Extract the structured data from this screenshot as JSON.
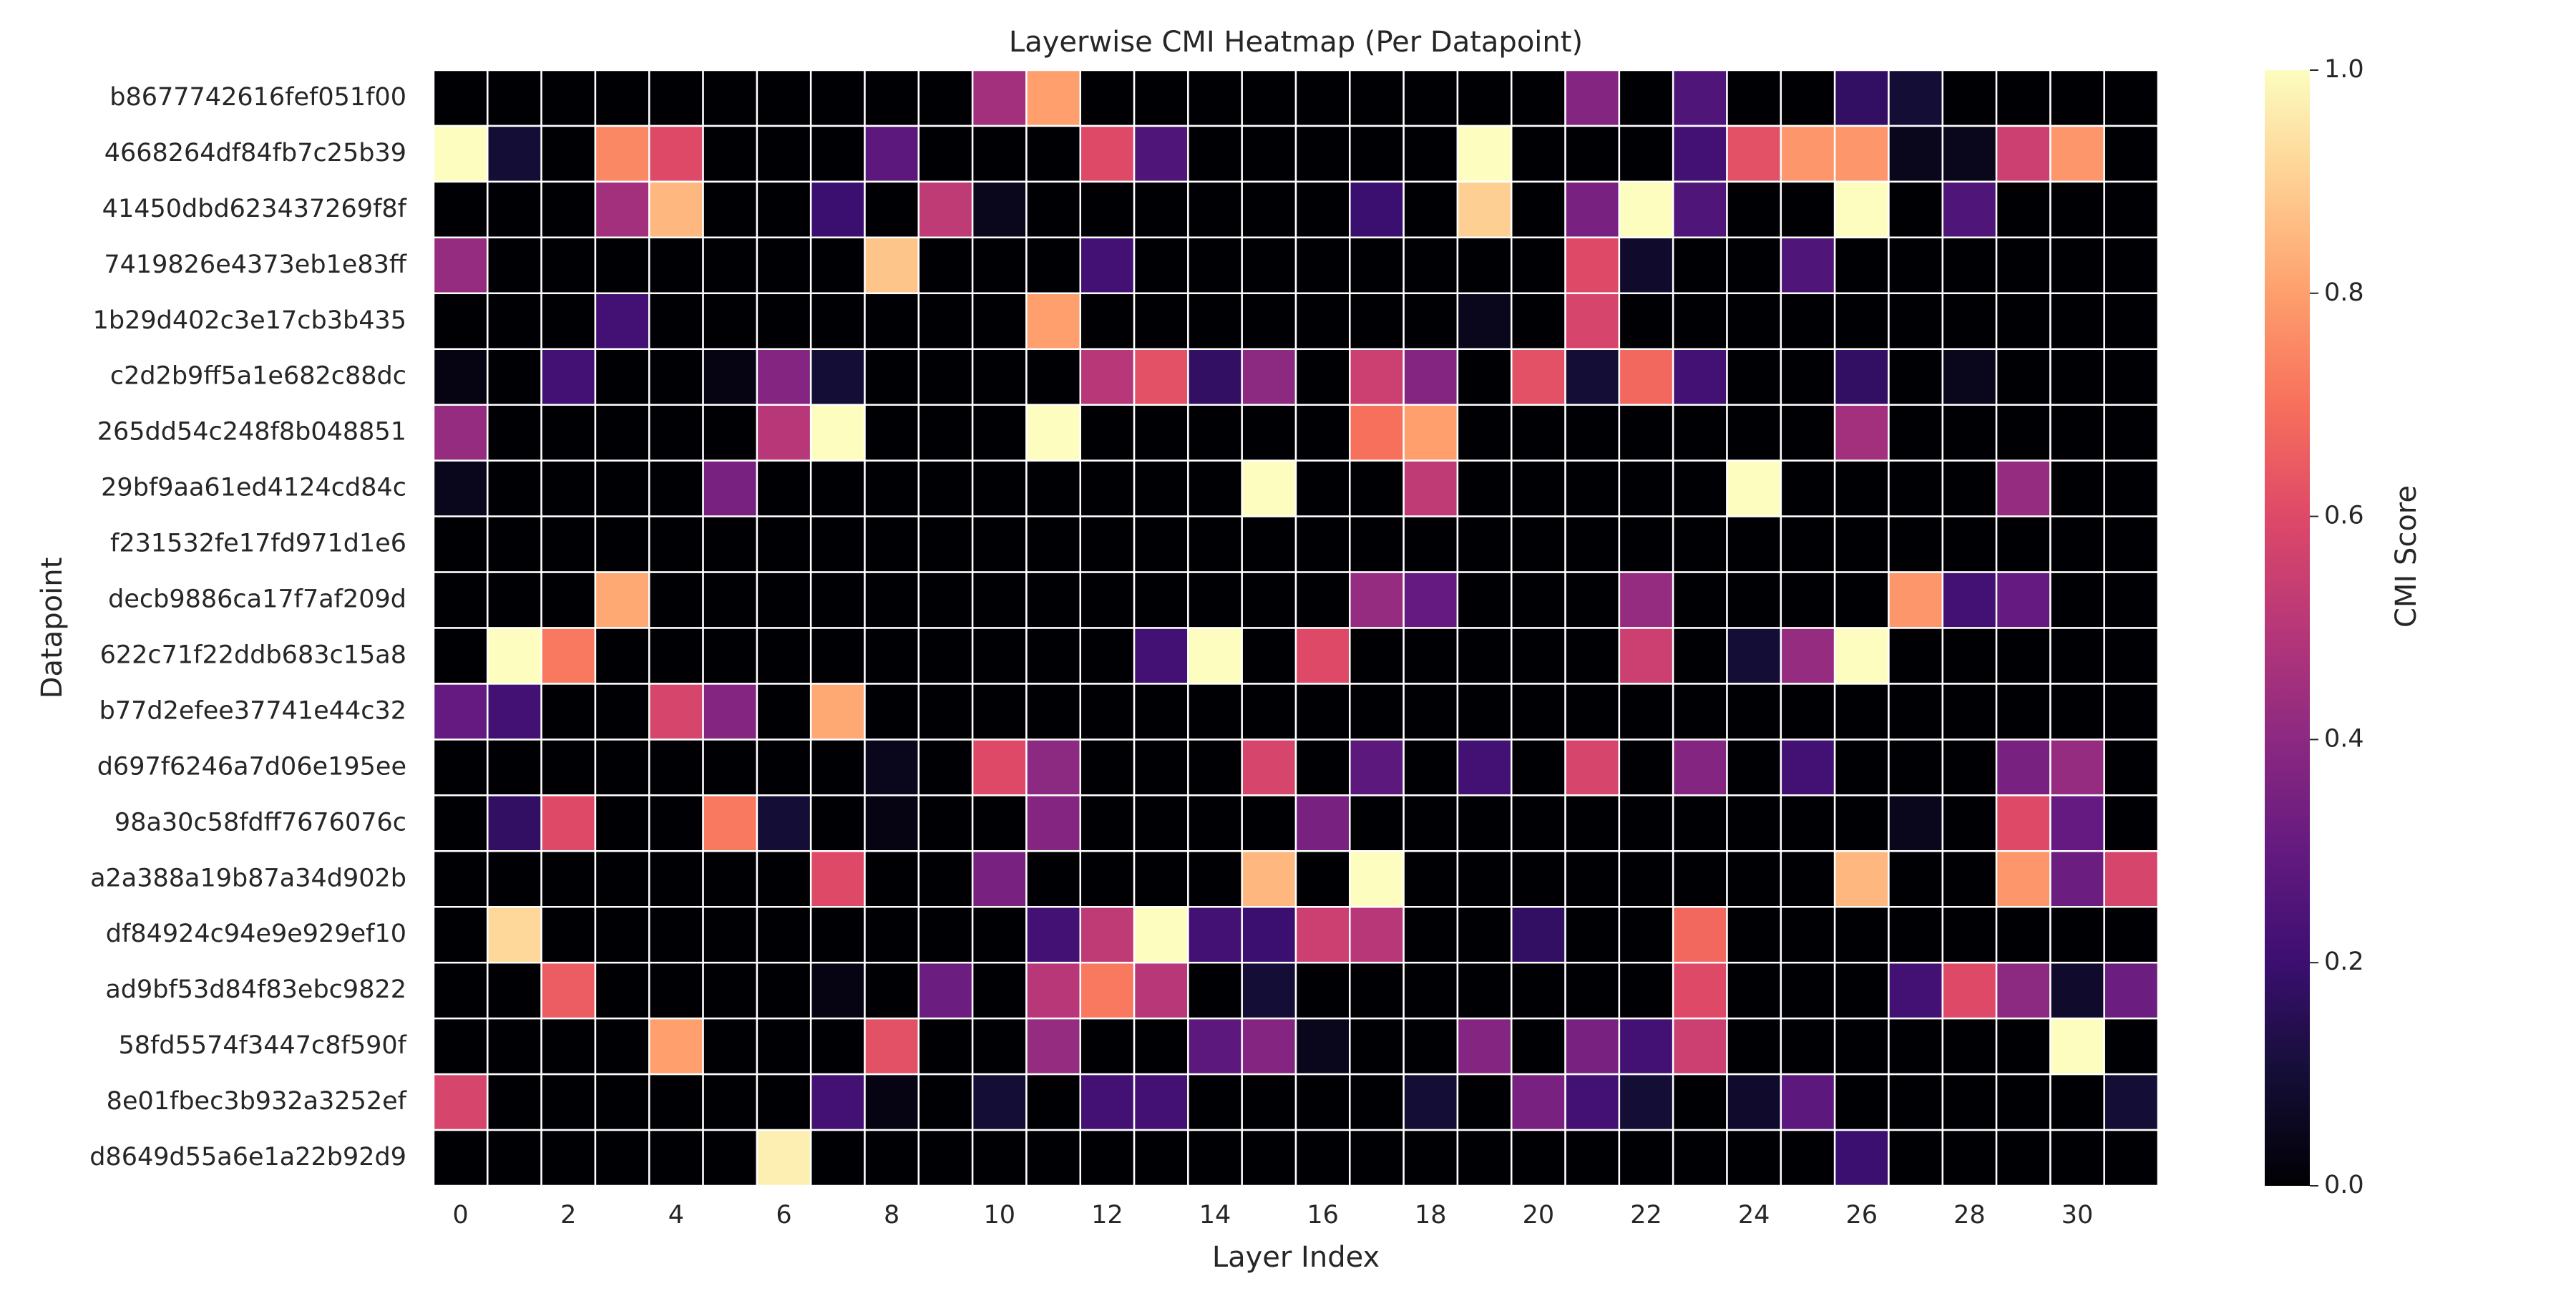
{
  "chart_data": {
    "type": "heatmap",
    "title": "Layerwise CMI Heatmap (Per Datapoint)",
    "xlabel": "Layer Index",
    "ylabel": "Datapoint",
    "colorbar_label": "CMI Score",
    "colormap": "magma",
    "value_range": [
      0.0,
      1.0
    ],
    "grid_line_color": "#ffffff",
    "x_tick_labels": [
      "0",
      "2",
      "4",
      "6",
      "8",
      "10",
      "12",
      "14",
      "16",
      "18",
      "20",
      "22",
      "24",
      "26",
      "28",
      "30"
    ],
    "colorbar_ticks": [
      "0.0",
      "0.2",
      "0.4",
      "0.6",
      "0.8",
      "1.0"
    ],
    "layers": [
      0,
      1,
      2,
      3,
      4,
      5,
      6,
      7,
      8,
      9,
      10,
      11,
      12,
      13,
      14,
      15,
      16,
      17,
      18,
      19,
      20,
      21,
      22,
      23,
      24,
      25,
      26,
      27,
      28,
      29,
      30,
      31
    ],
    "datapoints": [
      "b8677742616fef051f00",
      "4668264df84fb7c25b39",
      "41450dbd623437269f8f",
      "7419826e4373eb1e83ff",
      "1b29d402c3e17cb3b435",
      "c2d2b9ff5a1e682c88dc",
      "265dd54c248f8b048851",
      "29bf9aa61ed4124cd84c",
      "f231532fe17fd971d1e6",
      "decb9886ca17f7af209d",
      "622c71f22ddb683c15a8",
      "b77d2efee37741e44c32",
      "d697f6246a7d06e195ee",
      "98a30c58fdff7676076c",
      "a2a388a19b87a34d902b",
      "df84924c94e9e929ef10",
      "ad9bf53d84f83ebc9822",
      "58fd5574f3447c8f590f",
      "8e01fbec3b932a3252ef",
      "d8649d55a6e1a22b92d9"
    ],
    "values": [
      [
        0,
        0,
        0,
        0,
        0,
        0,
        0,
        0,
        0,
        0,
        0.45,
        0.8,
        0,
        0,
        0,
        0,
        0,
        0,
        0,
        0,
        0,
        0.38,
        0,
        0.25,
        0,
        0,
        0.18,
        0.1,
        0,
        0,
        0,
        0
      ],
      [
        1.0,
        0.1,
        0,
        0.75,
        0.6,
        0,
        0,
        0,
        0.28,
        0,
        0,
        0,
        0.6,
        0.25,
        0,
        0,
        0,
        0,
        0,
        1.0,
        0,
        0,
        0,
        0.22,
        0.62,
        0.78,
        0.78,
        0.05,
        0.05,
        0.55,
        0.78,
        0
      ],
      [
        0,
        0,
        0,
        0.45,
        0.85,
        0,
        0,
        0.2,
        0,
        0.52,
        0.05,
        0,
        0,
        0,
        0,
        0,
        0,
        0.2,
        0,
        0.9,
        0,
        0.35,
        1.0,
        0.25,
        0,
        0,
        1.0,
        0,
        0.25,
        0,
        0,
        0
      ],
      [
        0.42,
        0,
        0,
        0,
        0,
        0,
        0,
        0,
        0.88,
        0,
        0,
        0,
        0.22,
        0,
        0,
        0,
        0,
        0,
        0,
        0,
        0,
        0.6,
        0.08,
        0,
        0,
        0.25,
        0,
        0,
        0,
        0,
        0,
        0
      ],
      [
        0,
        0,
        0,
        0.22,
        0,
        0,
        0,
        0,
        0,
        0,
        0,
        0.8,
        0,
        0,
        0,
        0,
        0,
        0,
        0,
        0.05,
        0,
        0.58,
        0,
        0,
        0,
        0,
        0,
        0,
        0,
        0,
        0,
        0
      ],
      [
        0.03,
        0,
        0.22,
        0,
        0,
        0.03,
        0.38,
        0.1,
        0,
        0,
        0,
        0,
        0.5,
        0.62,
        0.18,
        0.4,
        0,
        0.55,
        0.38,
        0,
        0.62,
        0.1,
        0.68,
        0.22,
        0,
        0,
        0.18,
        0,
        0.05,
        0,
        0,
        0
      ],
      [
        0.42,
        0,
        0,
        0,
        0,
        0,
        0.5,
        1.0,
        0,
        0,
        0,
        1.0,
        0,
        0,
        0,
        0,
        0,
        0.7,
        0.8,
        0,
        0,
        0,
        0,
        0,
        0,
        0,
        0.45,
        0,
        0,
        0,
        0,
        0
      ],
      [
        0.05,
        0,
        0,
        0,
        0,
        0.35,
        0,
        0,
        0,
        0,
        0,
        0,
        0,
        0,
        0,
        1.0,
        0,
        0,
        0.52,
        0,
        0,
        0,
        0,
        0,
        1.0,
        0,
        0,
        0,
        0,
        0.42,
        0,
        0
      ],
      [
        0,
        0,
        0,
        0,
        0,
        0,
        0,
        0,
        0,
        0,
        0,
        0,
        0,
        0,
        0,
        0,
        0,
        0,
        0,
        0,
        0,
        0,
        0,
        0,
        0,
        0,
        0,
        0,
        0,
        0,
        0,
        0
      ],
      [
        0,
        0,
        0,
        0.82,
        0,
        0,
        0,
        0,
        0,
        0,
        0,
        0,
        0,
        0,
        0,
        0,
        0,
        0.42,
        0.3,
        0,
        0,
        0,
        0.42,
        0,
        0,
        0,
        0,
        0.78,
        0.22,
        0.3,
        0,
        0
      ],
      [
        0,
        1.0,
        0.72,
        0,
        0,
        0,
        0,
        0,
        0,
        0,
        0,
        0,
        0,
        0.22,
        1.0,
        0,
        0.6,
        0,
        0,
        0,
        0,
        0,
        0.55,
        0,
        0.1,
        0.42,
        1.0,
        0,
        0,
        0,
        0,
        0
      ],
      [
        0.3,
        0.22,
        0,
        0,
        0.58,
        0.38,
        0,
        0.82,
        0,
        0,
        0,
        0,
        0,
        0,
        0,
        0,
        0,
        0,
        0,
        0,
        0,
        0,
        0,
        0,
        0,
        0,
        0,
        0,
        0,
        0,
        0,
        0
      ],
      [
        0,
        0,
        0,
        0,
        0,
        0,
        0,
        0,
        0.05,
        0,
        0.6,
        0.4,
        0,
        0,
        0,
        0.58,
        0,
        0.28,
        0,
        0.22,
        0,
        0.58,
        0,
        0.38,
        0,
        0.22,
        0,
        0,
        0,
        0.35,
        0.42,
        0
      ],
      [
        0,
        0.18,
        0.6,
        0,
        0,
        0.72,
        0.1,
        0,
        0.03,
        0,
        0,
        0.38,
        0,
        0,
        0,
        0,
        0.35,
        0,
        0,
        0,
        0,
        0,
        0,
        0,
        0,
        0,
        0,
        0.05,
        0,
        0.6,
        0.3,
        0
      ],
      [
        0,
        0,
        0,
        0,
        0,
        0,
        0,
        0.6,
        0,
        0,
        0.35,
        0,
        0,
        0,
        0,
        0.85,
        0,
        1.0,
        0,
        0,
        0,
        0,
        0,
        0,
        0,
        0,
        0.85,
        0,
        0,
        0.78,
        0.32,
        0.58
      ],
      [
        0,
        0.92,
        0,
        0,
        0,
        0,
        0,
        0,
        0,
        0,
        0,
        0.22,
        0.52,
        1.0,
        0.22,
        0.2,
        0.55,
        0.5,
        0,
        0,
        0.18,
        0,
        0,
        0.68,
        0,
        0,
        0,
        0,
        0,
        0,
        0,
        0
      ],
      [
        0,
        0,
        0.65,
        0,
        0,
        0,
        0,
        0.03,
        0,
        0.32,
        0,
        0.5,
        0.72,
        0.5,
        0,
        0.1,
        0,
        0,
        0,
        0,
        0,
        0,
        0,
        0.6,
        0,
        0,
        0,
        0.22,
        0.6,
        0.4,
        0.08,
        0.32
      ],
      [
        0,
        0,
        0,
        0,
        0.8,
        0,
        0,
        0,
        0.62,
        0,
        0,
        0.42,
        0,
        0,
        0.28,
        0.38,
        0.05,
        0,
        0,
        0.38,
        0,
        0.35,
        0.22,
        0.55,
        0,
        0,
        0,
        0,
        0,
        0,
        1.0,
        0
      ],
      [
        0.58,
        0,
        0,
        0,
        0,
        0,
        0,
        0.22,
        0.03,
        0,
        0.1,
        0,
        0.22,
        0.22,
        0,
        0,
        0,
        0,
        0.1,
        0,
        0.35,
        0.22,
        0.1,
        0,
        0.08,
        0.28,
        0,
        0,
        0,
        0,
        0,
        0.1
      ],
      [
        0,
        0,
        0,
        0,
        0,
        0,
        0.97,
        0,
        0,
        0,
        0,
        0,
        0,
        0,
        0,
        0,
        0,
        0,
        0,
        0,
        0,
        0,
        0,
        0,
        0,
        0,
        0.2,
        0,
        0,
        0,
        0,
        0
      ]
    ]
  }
}
